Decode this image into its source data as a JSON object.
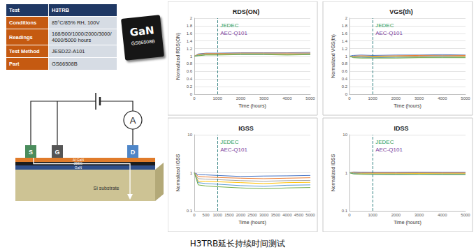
{
  "table": {
    "rows": [
      [
        "Test",
        "H3TRB"
      ],
      [
        "Conditions",
        "85°C/85% RH, 100V"
      ],
      [
        "Readings",
        "168/500/1000/2000/3000/4000/5000 hours"
      ],
      [
        "Test Method",
        "JESD22-A101"
      ],
      [
        "Part",
        "GS66508B"
      ]
    ]
  },
  "chip": {
    "logo": "GaN",
    "part": "GS66508B"
  },
  "diagram": {
    "terminals": [
      "S",
      "G",
      "D"
    ],
    "meter": "A",
    "layers": [
      "Al GaN",
      "2DEG",
      "GaN",
      "Si substrate"
    ]
  },
  "caption": "H3TRB延长持续时间测试",
  "chart_data": [
    {
      "type": "line",
      "title": "RDS(ON)",
      "x_label": "Time (hours)",
      "y_label": "Normalized RDS(ON)",
      "x": [
        0,
        168,
        500,
        1000,
        2000,
        3000,
        4000,
        5000
      ],
      "series": [
        {
          "color": "#4472c4",
          "values": [
            1,
            1.06,
            1.08,
            1.08,
            1.09,
            1.09,
            1.09,
            1.1
          ]
        },
        {
          "color": "#ed7d31",
          "values": [
            1,
            1.05,
            1.07,
            1.07,
            1.08,
            1.08,
            1.08,
            1.08
          ]
        },
        {
          "color": "#a5a5a5",
          "values": [
            1,
            1.04,
            1.06,
            1.06,
            1.07,
            1.07,
            1.06,
            1.07
          ]
        },
        {
          "color": "#ffc000",
          "values": [
            1,
            1.03,
            1.05,
            1.05,
            1.06,
            1.06,
            1.05,
            1.06
          ]
        },
        {
          "color": "#5b9bd5",
          "values": [
            1,
            1.02,
            1.04,
            1.04,
            1.05,
            1.05,
            1.04,
            1.05
          ]
        },
        {
          "color": "#70ad47",
          "values": [
            1,
            1.01,
            1.03,
            1.03,
            1.04,
            1.04,
            1.03,
            1.04
          ]
        }
      ],
      "xlim": [
        0,
        5000
      ],
      "xticks": [
        0,
        1000,
        2000,
        3000,
        4000,
        5000
      ],
      "ylim": [
        0,
        2
      ],
      "yticks": [
        0,
        0.2,
        0.4,
        0.6,
        0.8,
        1,
        1.2,
        1.4,
        1.6,
        1.8,
        2
      ],
      "grid": true,
      "annotations": [
        {
          "x": 1000,
          "text": "JEDEC",
          "color": "#2e9e5b"
        },
        {
          "x": 1000,
          "text": "AEC-Q101",
          "color": "#7b3f9e"
        }
      ]
    },
    {
      "type": "line",
      "title": "VGS(th)",
      "x_label": "Time (hours)",
      "y_label": "Normalized VGS(th)",
      "x": [
        0,
        168,
        500,
        1000,
        2000,
        3000,
        4000,
        5000
      ],
      "series": [
        {
          "color": "#4472c4",
          "values": [
            1,
            1.02,
            1.03,
            1.02,
            1.03,
            1.03,
            1.04,
            1.03
          ]
        },
        {
          "color": "#ed7d31",
          "values": [
            1,
            1,
            1.01,
            1,
            1.01,
            1.02,
            1.02,
            1.02
          ]
        },
        {
          "color": "#a5a5a5",
          "values": [
            1,
            0.99,
            1,
            0.99,
            1,
            1,
            1.01,
            1
          ]
        },
        {
          "color": "#ffc000",
          "values": [
            1,
            0.98,
            0.98,
            0.98,
            0.99,
            0.98,
            0.99,
            0.99
          ]
        },
        {
          "color": "#5b9bd5",
          "values": [
            1,
            0.97,
            0.97,
            0.96,
            0.97,
            0.97,
            0.98,
            0.97
          ]
        },
        {
          "color": "#70ad47",
          "values": [
            1,
            0.96,
            0.95,
            0.95,
            0.95,
            0.96,
            0.96,
            0.96
          ]
        }
      ],
      "xlim": [
        0,
        5000
      ],
      "xticks": [
        0,
        1000,
        2000,
        3000,
        4000,
        5000
      ],
      "ylim": [
        0,
        2
      ],
      "yticks": [
        0,
        0.2,
        0.4,
        0.6,
        0.8,
        1,
        1.2,
        1.4,
        1.6,
        1.8,
        2
      ],
      "grid": true,
      "annotations": [
        {
          "x": 1000,
          "text": "JEDEC",
          "color": "#2e9e5b"
        },
        {
          "x": 1000,
          "text": "AEC-Q101",
          "color": "#7b3f9e"
        }
      ]
    },
    {
      "type": "line",
      "title": "IGSS",
      "x_label": "Time (hours)",
      "y_label": "Normalized IGSS",
      "x": [
        0,
        168,
        500,
        1000,
        2000,
        3000,
        4000,
        5000
      ],
      "series": [
        {
          "color": "#4472c4",
          "values": [
            1,
            0.9,
            0.88,
            0.85,
            0.8,
            0.82,
            0.83,
            0.85
          ]
        },
        {
          "color": "#ed7d31",
          "values": [
            1,
            0.8,
            0.78,
            0.75,
            0.72,
            0.7,
            0.72,
            0.74
          ]
        },
        {
          "color": "#a5a5a5",
          "values": [
            1,
            0.7,
            0.68,
            0.66,
            0.62,
            0.6,
            0.62,
            0.63
          ]
        },
        {
          "color": "#ffc000",
          "values": [
            1,
            0.6,
            0.6,
            0.58,
            0.55,
            0.52,
            0.55,
            0.56
          ]
        },
        {
          "color": "#5b9bd5",
          "values": [
            1,
            0.55,
            0.52,
            0.5,
            0.46,
            0.44,
            0.47,
            0.48
          ]
        },
        {
          "color": "#70ad47",
          "values": [
            1,
            0.48,
            0.45,
            0.43,
            0.4,
            0.38,
            0.4,
            0.41
          ]
        }
      ],
      "xlim": [
        0,
        5000
      ],
      "xticks": [
        0,
        500,
        1000,
        1500,
        2000,
        2500,
        3000,
        3500,
        4000,
        4500,
        5000
      ],
      "ylim": [
        0.1,
        10
      ],
      "yticks": [
        0.1,
        1,
        10
      ],
      "log": "y",
      "grid": true,
      "annotations": [
        {
          "x": 1000,
          "text": "JEDEC",
          "color": "#2e9e5b"
        },
        {
          "x": 1000,
          "text": "AEC-Q101",
          "color": "#7b3f9e"
        }
      ]
    },
    {
      "type": "line",
      "title": "IDSS",
      "x_label": "Time (hours)",
      "y_label": "Normalized IDSS",
      "x": [
        0,
        168,
        500,
        1000,
        2000,
        3000,
        4000,
        5000
      ],
      "series": [
        {
          "color": "#4472c4",
          "values": [
            1,
            1.05,
            1.04,
            1.03,
            1.03,
            1.04,
            1.03,
            1.03
          ]
        },
        {
          "color": "#ed7d31",
          "values": [
            1,
            1.02,
            1.01,
            1,
            1,
            1.01,
            1,
            1
          ]
        },
        {
          "color": "#a5a5a5",
          "values": [
            1,
            1,
            0.98,
            0.97,
            0.97,
            0.98,
            0.97,
            0.97
          ]
        },
        {
          "color": "#ffc000",
          "values": [
            1,
            0.97,
            0.95,
            0.94,
            0.94,
            0.95,
            0.94,
            0.94
          ]
        },
        {
          "color": "#5b9bd5",
          "values": [
            1,
            0.95,
            0.93,
            0.92,
            0.91,
            0.92,
            0.91,
            0.91
          ]
        },
        {
          "color": "#70ad47",
          "values": [
            1,
            0.93,
            0.91,
            0.9,
            0.89,
            0.9,
            0.89,
            0.89
          ]
        }
      ],
      "xlim": [
        0,
        5000
      ],
      "xticks": [
        0,
        1000,
        2000,
        3000,
        4000,
        5000
      ],
      "ylim": [
        0.1,
        10
      ],
      "yticks": [
        0.1,
        1,
        10
      ],
      "log": "y",
      "grid": true,
      "annotations": [
        {
          "x": 1000,
          "text": "JEDEC",
          "color": "#2e9e5b"
        },
        {
          "x": 1000,
          "text": "AEC-Q101",
          "color": "#7b3f9e"
        }
      ]
    }
  ]
}
